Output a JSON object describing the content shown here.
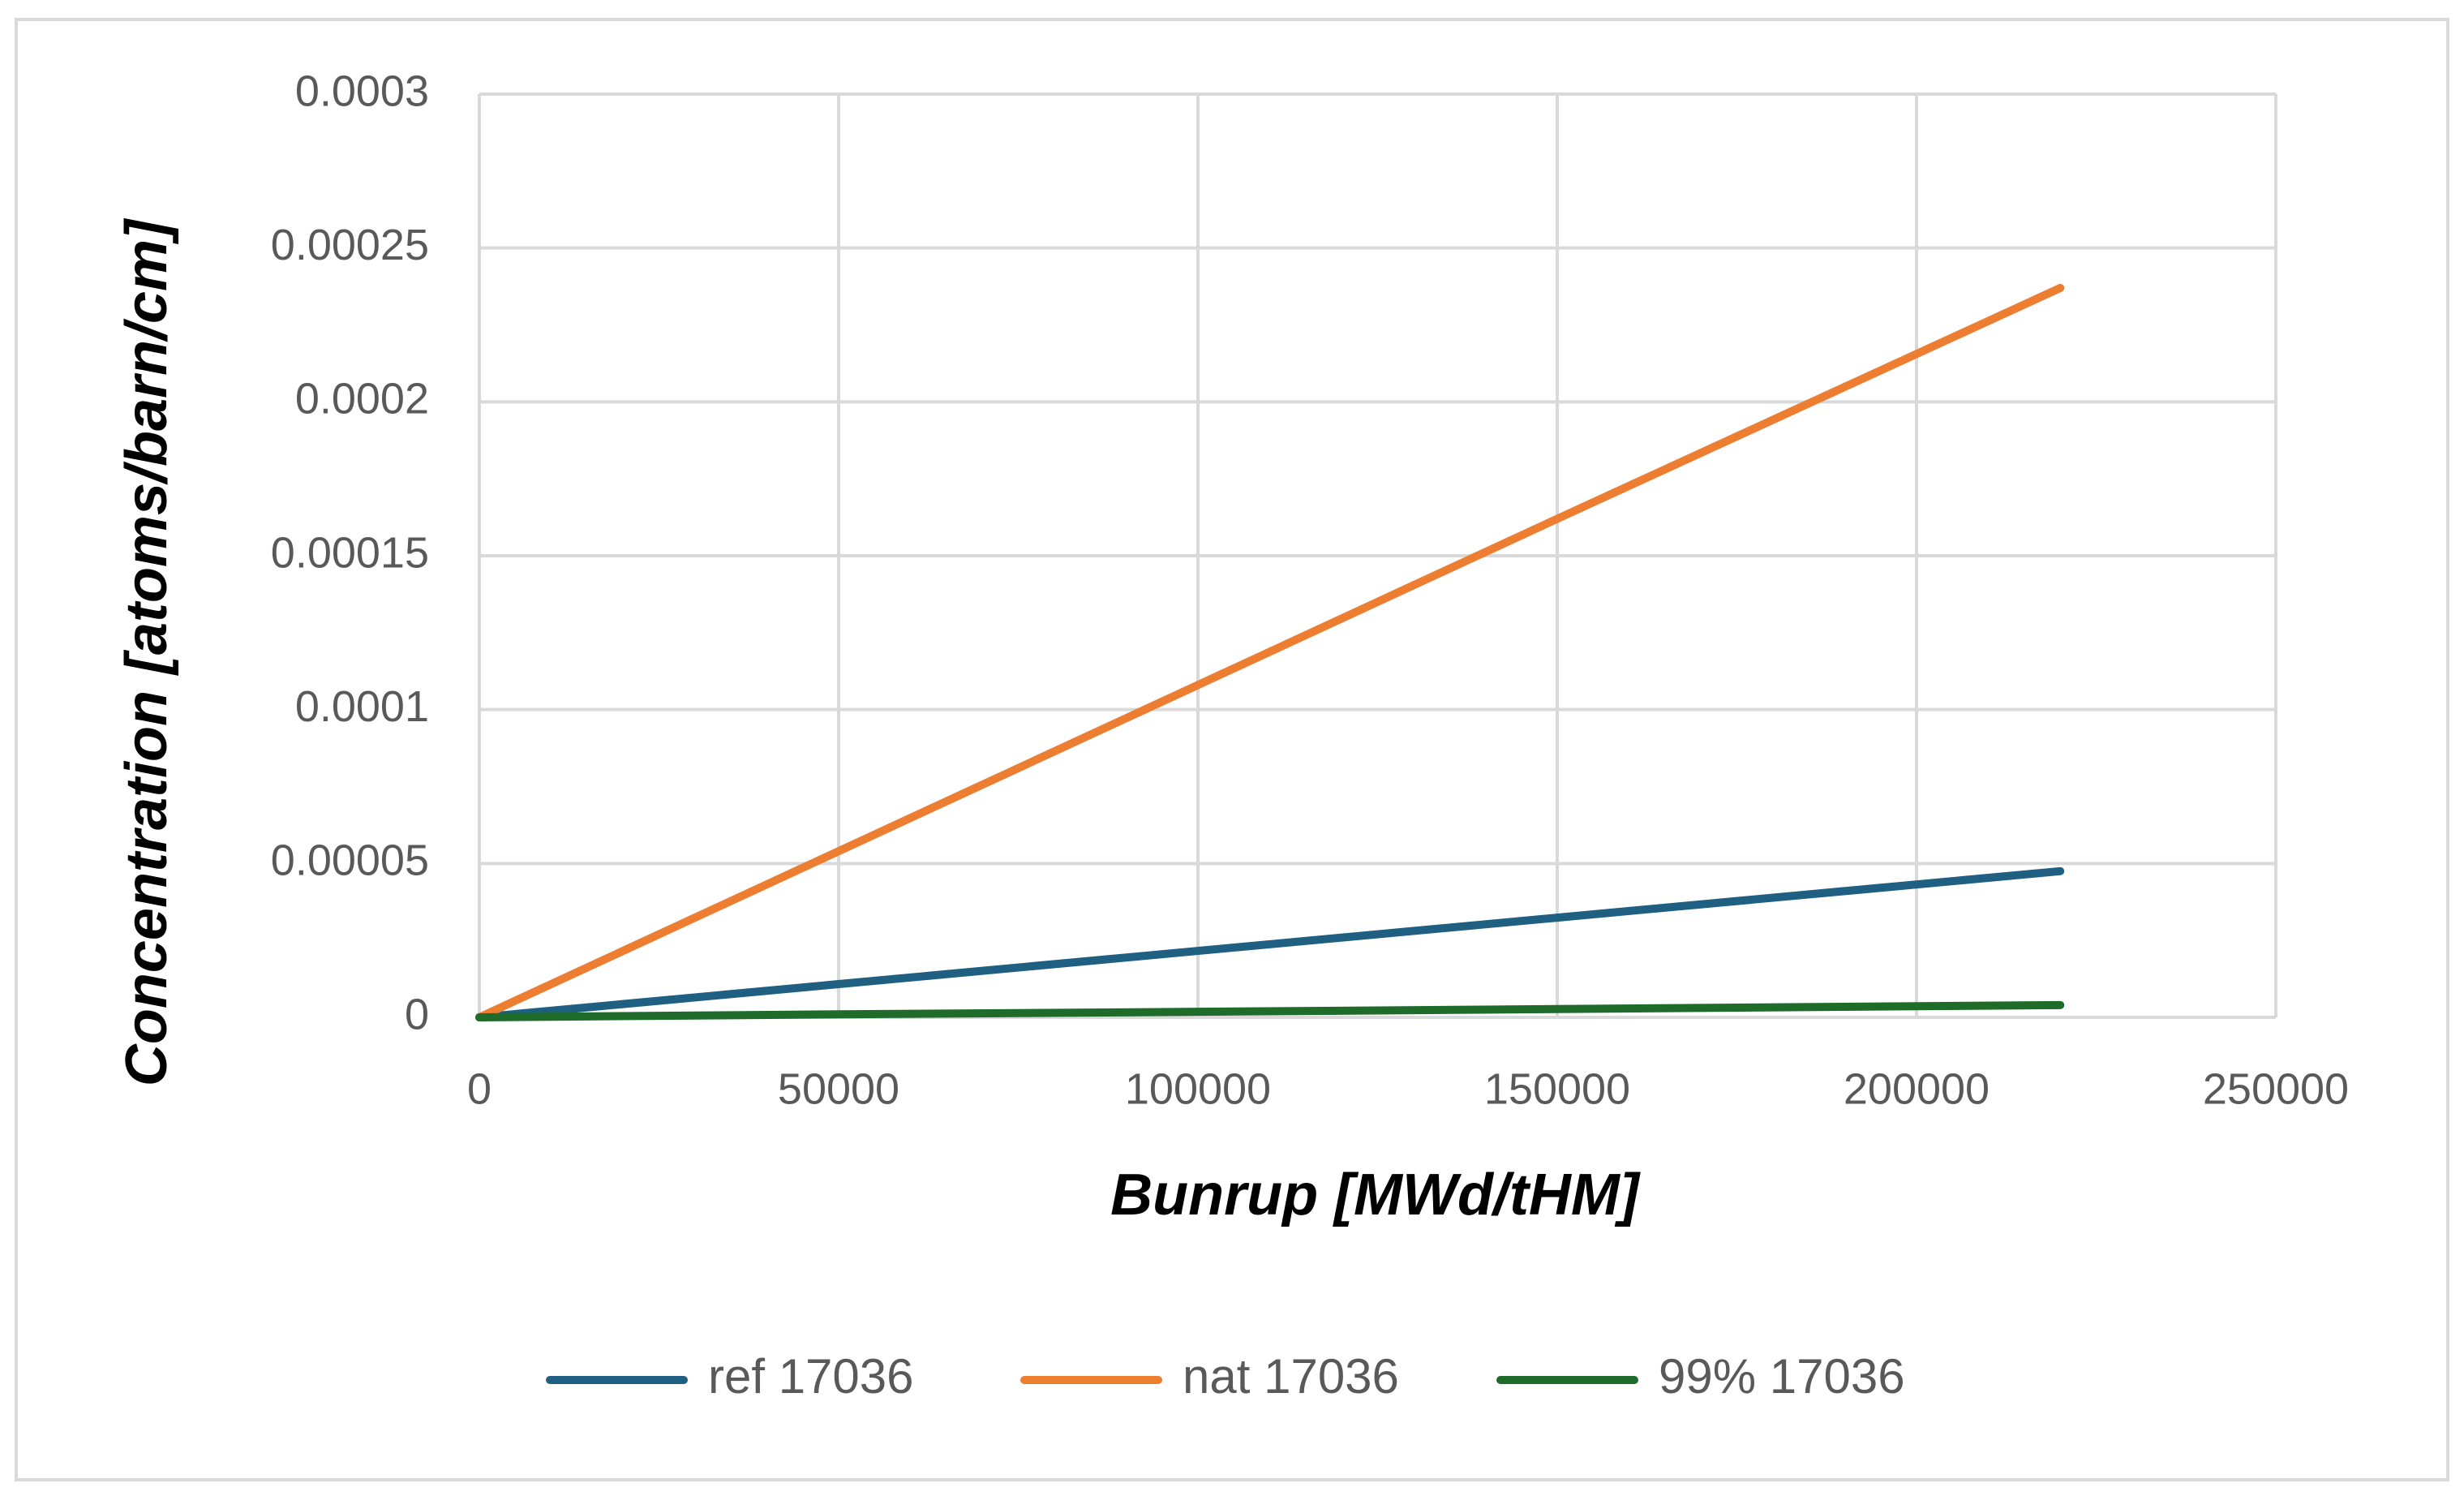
{
  "chart_data": {
    "type": "line",
    "x_label": "Bunrup [MWd/tHM]",
    "y_label": "Concentration [atoms/barn/cm]",
    "x": [
      0,
      50000,
      100000,
      150000,
      220000
    ],
    "series": [
      {
        "name": "ref 17036",
        "color": "#1f5f82",
        "values": [
          0,
          1.08e-05,
          2.16e-05,
          3.24e-05,
          4.75e-05
        ]
      },
      {
        "name": "nat 17036",
        "color": "#ed7d31",
        "values": [
          0,
          5.4e-05,
          0.000108,
          0.000162,
          0.000237
        ]
      },
      {
        "name": "99% 17036",
        "color": "#1e6b2a",
        "values": [
          0,
          1e-06,
          1.8e-06,
          2.7e-06,
          4e-06
        ]
      }
    ],
    "xlim": [
      0,
      250000
    ],
    "xticks": [
      0,
      50000,
      100000,
      150000,
      200000,
      250000
    ],
    "ylim": [
      0,
      0.0003
    ],
    "yticks": [
      0,
      5e-05,
      0.0001,
      0.00015,
      0.0002,
      0.00025,
      0.0003
    ],
    "grid": true,
    "legend": "bottom"
  }
}
